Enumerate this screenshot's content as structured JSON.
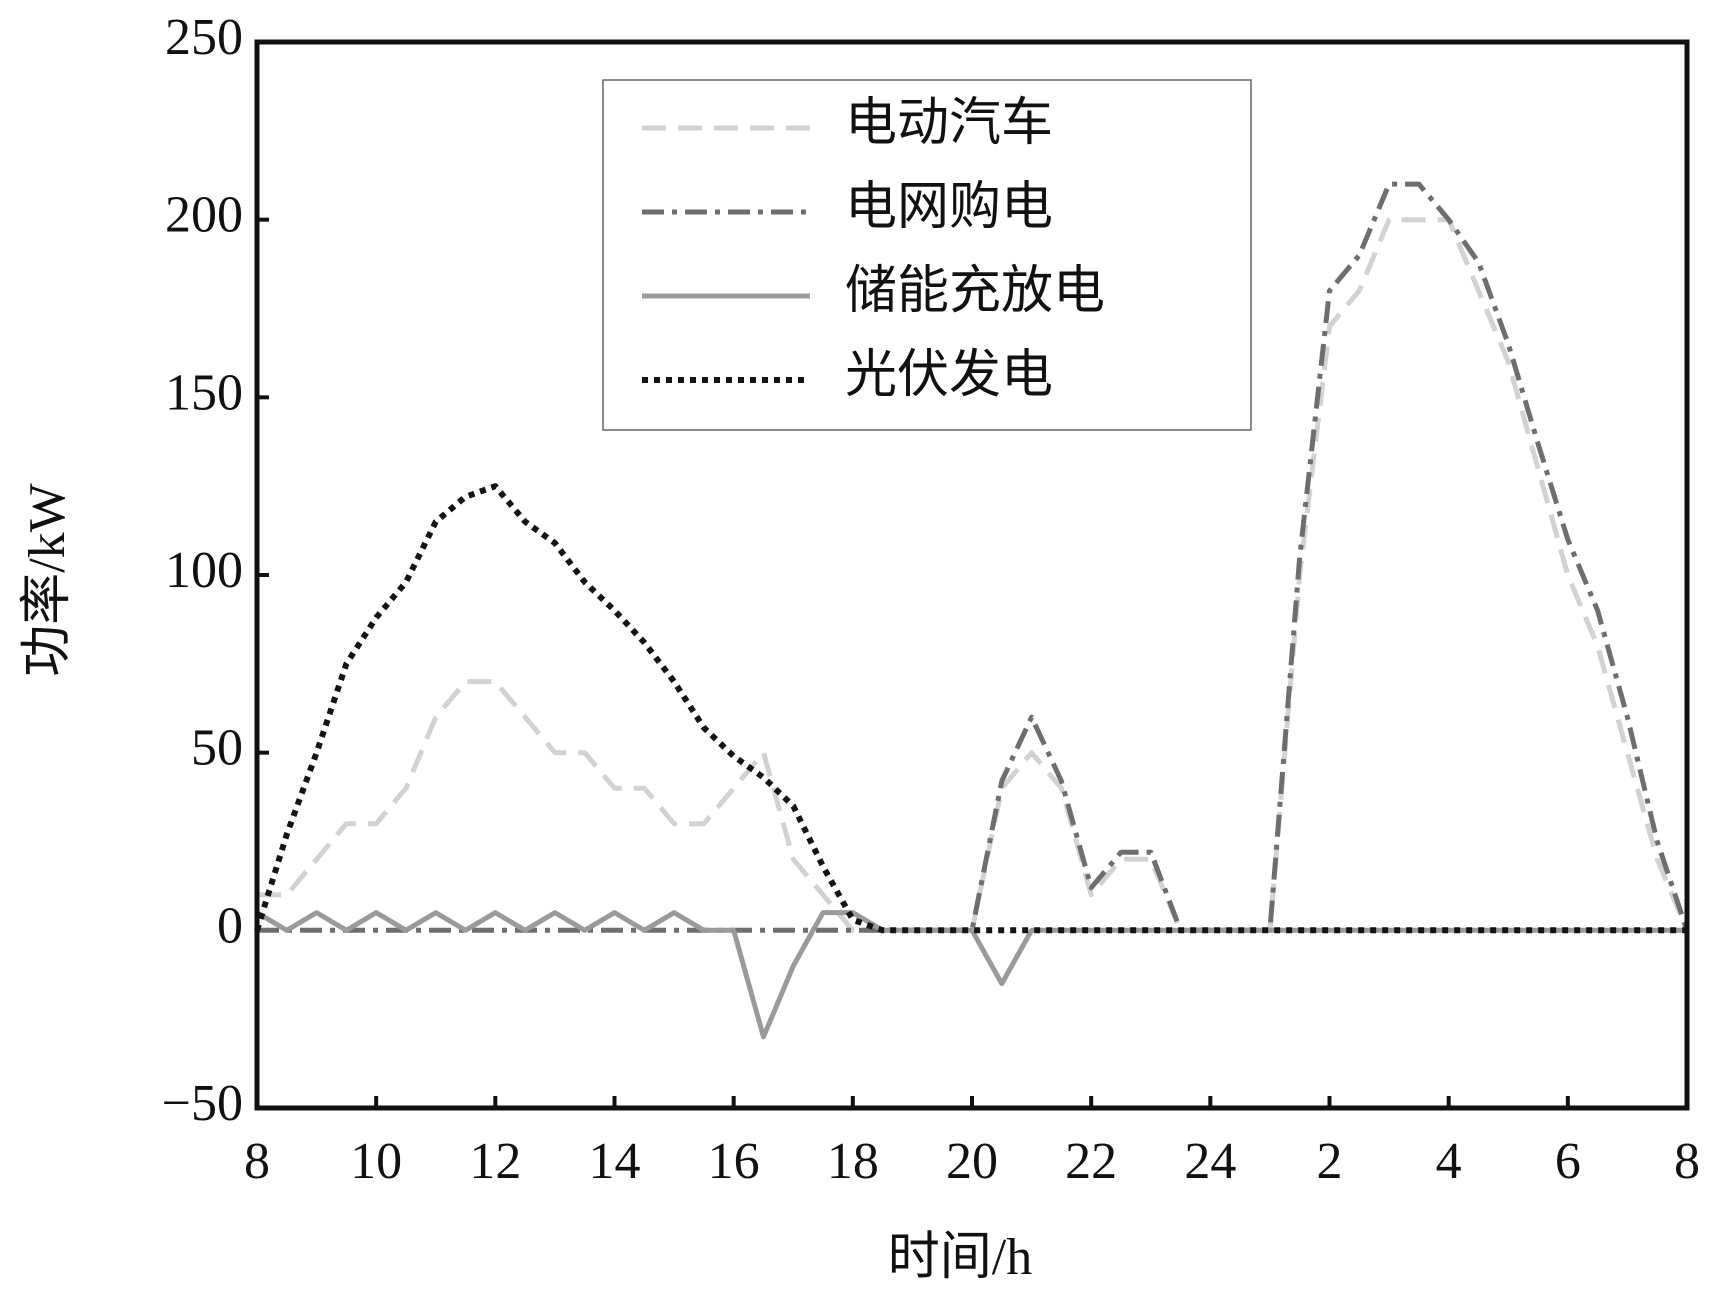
{
  "chart_data": {
    "type": "line",
    "xlabel": "时间/h",
    "ylabel": "功率/kW",
    "x": [
      8,
      8.5,
      9,
      9.5,
      10,
      10.5,
      11,
      11.5,
      12,
      12.5,
      13,
      13.5,
      14,
      14.5,
      15,
      15.5,
      16,
      16.5,
      17,
      17.5,
      18,
      18.5,
      19,
      19.5,
      20,
      20.5,
      21,
      21.5,
      22,
      22.5,
      23,
      23.5,
      24,
      24.5,
      25,
      25.5,
      26,
      26.5,
      27,
      27.5,
      28,
      28.5,
      29,
      29.5,
      30,
      30.5,
      31,
      31.5,
      32
    ],
    "series": [
      {
        "name": "电动汽车",
        "color": "#d2d2d2",
        "dash": "24 12",
        "values": [
          10,
          10,
          20,
          30,
          30,
          40,
          60,
          70,
          70,
          60,
          50,
          50,
          40,
          40,
          30,
          30,
          40,
          50,
          20,
          10,
          0,
          0,
          0,
          0,
          0,
          40,
          50,
          40,
          10,
          20,
          20,
          0,
          0,
          0,
          0,
          100,
          170,
          180,
          200,
          200,
          200,
          180,
          160,
          130,
          100,
          80,
          50,
          20,
          0
        ]
      },
      {
        "name": "电网购电",
        "color": "#6e6e6e",
        "dash": "22 8 5 8",
        "values": [
          0,
          0,
          0,
          0,
          0,
          0,
          0,
          0,
          0,
          0,
          0,
          0,
          0,
          0,
          0,
          0,
          0,
          0,
          0,
          0,
          0,
          0,
          0,
          0,
          0,
          42,
          60,
          42,
          12,
          22,
          22,
          0,
          0,
          0,
          0,
          105,
          180,
          190,
          210,
          210,
          200,
          188,
          165,
          137,
          110,
          90,
          60,
          25,
          0
        ]
      },
      {
        "name": "储能充放电",
        "color": "#9a9a9a",
        "dash": "none",
        "values": [
          5,
          0,
          5,
          0,
          5,
          0,
          5,
          0,
          5,
          0,
          5,
          0,
          5,
          0,
          5,
          0,
          0,
          -30,
          -10,
          5,
          5,
          0,
          0,
          0,
          0,
          -15,
          0,
          0,
          0,
          0,
          0,
          0,
          0,
          0,
          0,
          0,
          0,
          0,
          0,
          0,
          0,
          0,
          0,
          0,
          0,
          0,
          0,
          0,
          0
        ]
      },
      {
        "name": "光伏发电",
        "color": "#141414",
        "dash": "6 6",
        "values": [
          0,
          27,
          50,
          75,
          88,
          98,
          115,
          122,
          125,
          115,
          109,
          98,
          90,
          81,
          70,
          57,
          49,
          43,
          35,
          18,
          3,
          0,
          0,
          0,
          0,
          0,
          0,
          0,
          0,
          0,
          0,
          0,
          0,
          0,
          0,
          0,
          0,
          0,
          0,
          0,
          0,
          0,
          0,
          0,
          0,
          0,
          0,
          0,
          0
        ]
      }
    ],
    "xlim": [
      8,
      32
    ],
    "xticks": [
      8,
      10,
      12,
      14,
      16,
      18,
      20,
      22,
      24,
      {
        "value": 26,
        "label": "2"
      },
      {
        "value": 28,
        "label": "4"
      },
      {
        "value": 30,
        "label": "6"
      },
      {
        "value": 32,
        "label": "8"
      }
    ],
    "ylim": [
      -50,
      250
    ],
    "yticks": [
      {
        "value": -50,
        "label": "−50"
      },
      0,
      50,
      100,
      150,
      200,
      250
    ],
    "grid": false,
    "legend": "upper center"
  }
}
